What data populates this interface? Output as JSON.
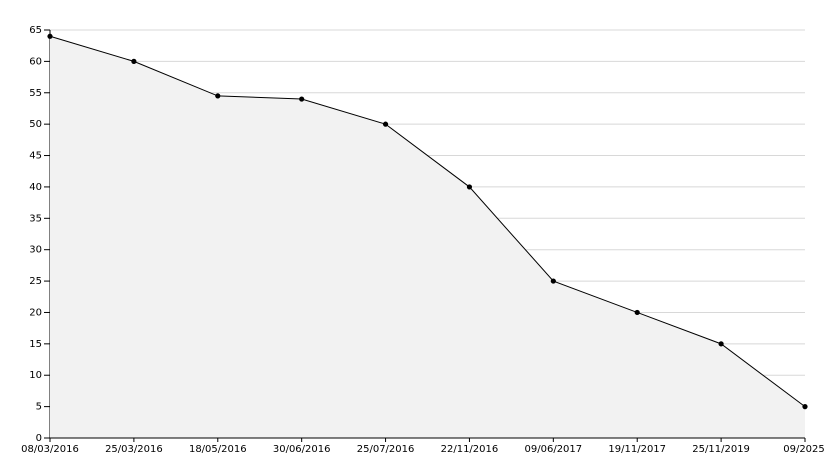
{
  "chart_data": {
    "type": "area",
    "categories": [
      "08/03/2016",
      "25/03/2016",
      "18/05/2016",
      "30/06/2016",
      "25/07/2016",
      "22/11/2016",
      "09/06/2017",
      "19/11/2017",
      "25/11/2019",
      "09/2025"
    ],
    "values": [
      64,
      60,
      54.5,
      54,
      50,
      40,
      25,
      20,
      15,
      5
    ],
    "color": "#000000",
    "fill": "#f2f2f2",
    "ylim": [
      0,
      65
    ],
    "yticks": [
      0,
      5,
      10,
      15,
      20,
      25,
      30,
      35,
      40,
      45,
      50,
      55,
      60,
      65
    ],
    "grid": true
  }
}
